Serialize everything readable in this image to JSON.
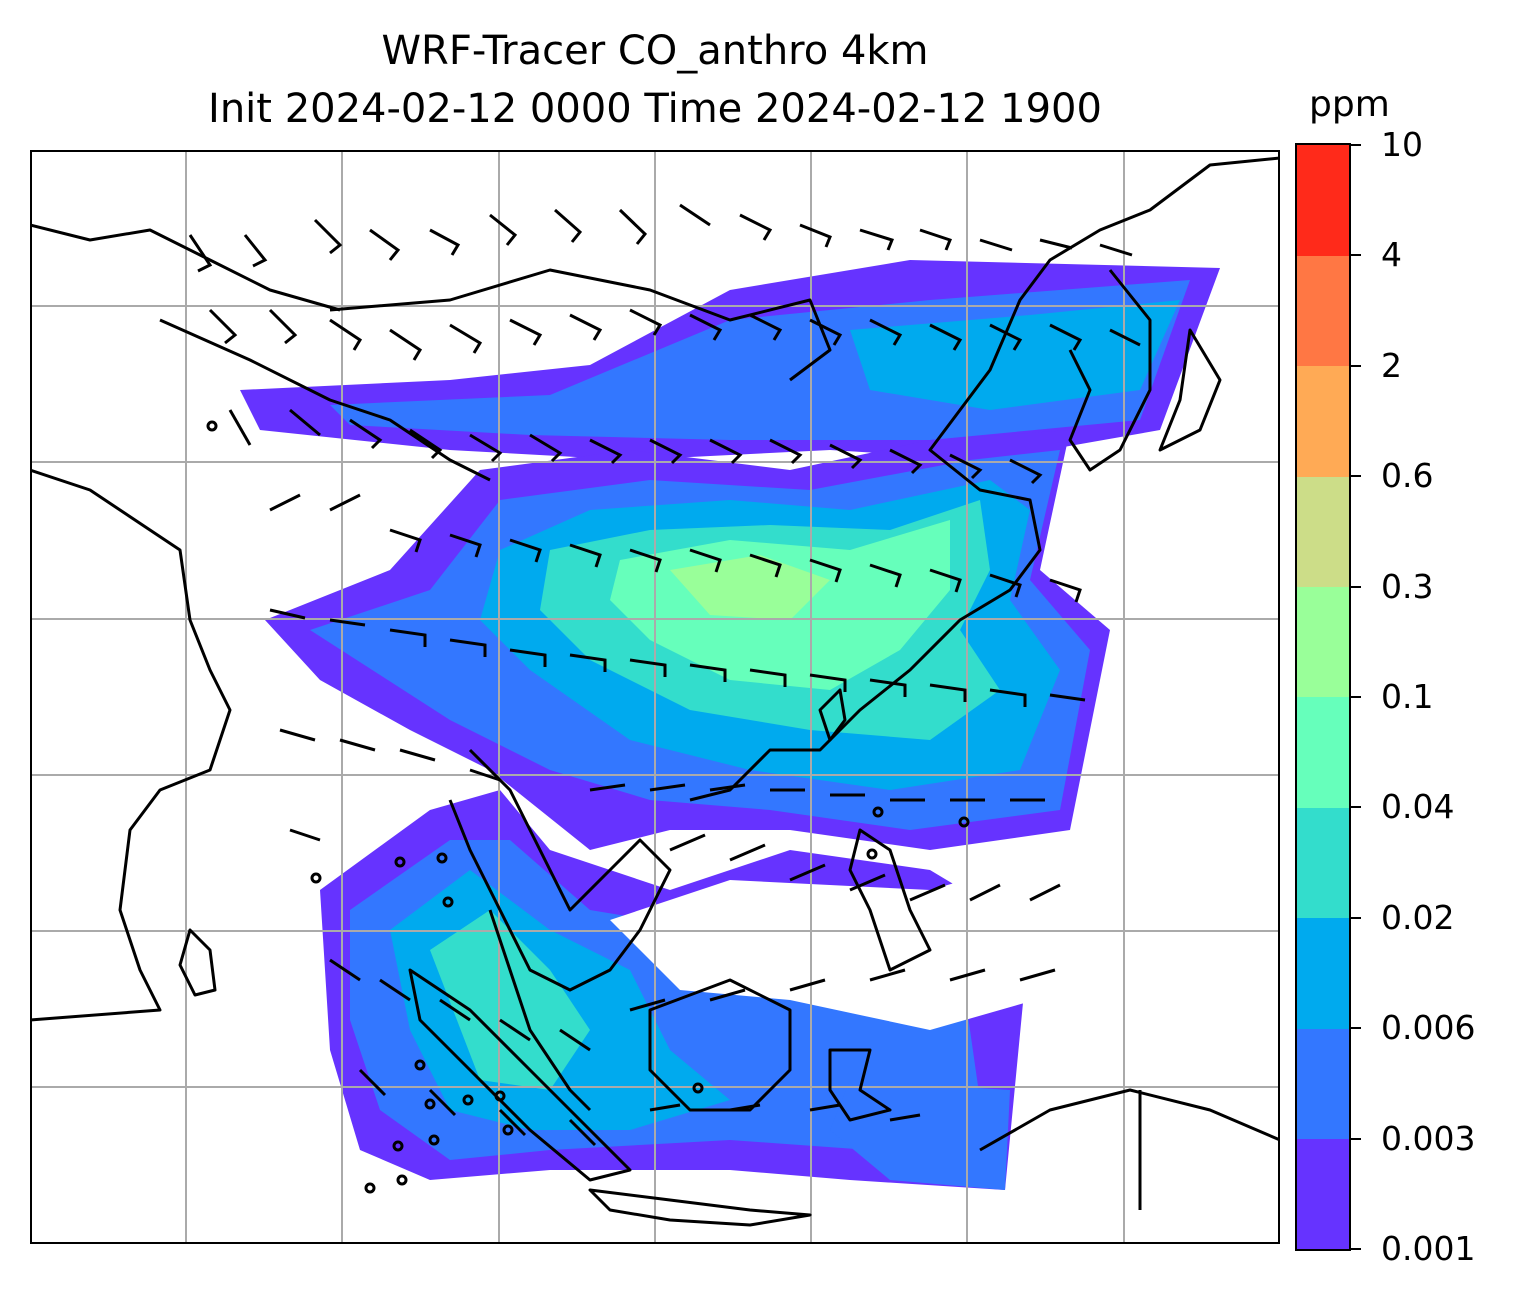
{
  "title": {
    "line1": "WRF-Tracer CO_anthro 4km",
    "line2": "Init 2024-02-12 0000 Time 2024-02-12 1900"
  },
  "colorbar": {
    "unit": "ppm",
    "levels": [
      "0.001",
      "0.003",
      "0.006",
      "0.02",
      "0.04",
      "0.1",
      "0.3",
      "0.6",
      "2",
      "4",
      "10"
    ],
    "colors": [
      "#6633ff",
      "#3377ff",
      "#00aaee",
      "#33ddcc",
      "#66ffbb",
      "#99ff99",
      "#ccdd88",
      "#ffaa55",
      "#ff7744",
      "#ff2a1a"
    ]
  },
  "map": {
    "field": "CO_anthro",
    "overlays": [
      "coastlines",
      "country-borders",
      "gridlines",
      "wind-barbs"
    ]
  }
}
